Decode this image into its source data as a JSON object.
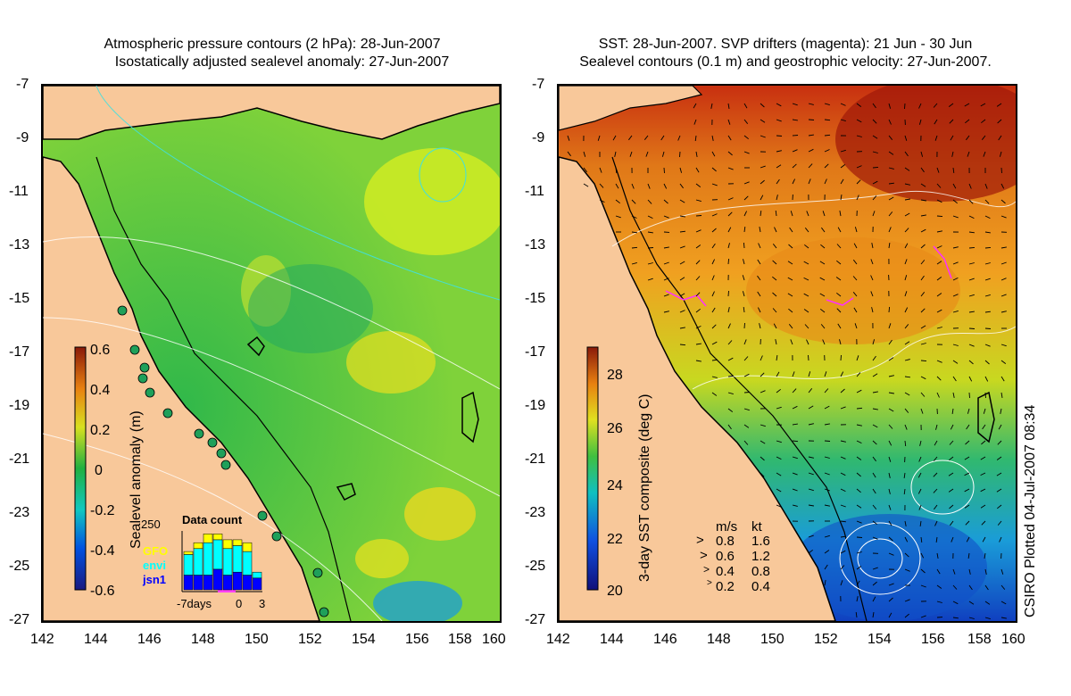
{
  "left_panel": {
    "title_line1": "Atmospheric pressure contours (2 hPa): 28-Jun-2007",
    "title_line2": "Isostatically adjusted sealevel anomaly: 27-Jun-2007",
    "colorbar": {
      "label": "Sealevel anomaly (m)",
      "ticks": [
        "0.6",
        "0.4",
        "0.2",
        "0",
        "-0.2",
        "-0.4",
        "-0.6"
      ]
    },
    "inset": {
      "title": "Data count",
      "ymax": "250",
      "legend": [
        {
          "name": "GFO",
          "color": "#ffff00"
        },
        {
          "name": "envi",
          "color": "#00ffff"
        },
        {
          "name": "jsn1",
          "color": "#0000ff"
        }
      ],
      "x_start": "-7days",
      "x_mid": "0",
      "x_end": "3",
      "bars": [
        {
          "jsn1": 0.25,
          "envi": 0.35,
          "gfo": 0.05
        },
        {
          "jsn1": 0.25,
          "envi": 0.45,
          "gfo": 0.1
        },
        {
          "jsn1": 0.25,
          "envi": 0.55,
          "gfo": 0.15
        },
        {
          "jsn1": 0.35,
          "envi": 0.5,
          "gfo": 0.1
        },
        {
          "jsn1": 0.25,
          "envi": 0.45,
          "gfo": 0.15
        },
        {
          "jsn1": 0.3,
          "envi": 0.45,
          "gfo": 0.1
        },
        {
          "jsn1": 0.25,
          "envi": 0.4,
          "gfo": 0.15
        },
        {
          "jsn1": 0.2,
          "envi": 0.1,
          "gfo": 0.0
        }
      ]
    }
  },
  "right_panel": {
    "title_line1": "SST: 28-Jun-2007. SVP drifters (magenta): 21 Jun - 30 Jun",
    "title_line2": "Sealevel contours (0.1 m) and geostrophic velocity: 27-Jun-2007.",
    "colorbar": {
      "label": "3-day SST composite (deg C)",
      "ticks": [
        "28",
        "26",
        "24",
        "22",
        "20"
      ]
    },
    "velocity_key": {
      "header_ms": "m/s",
      "header_kt": "kt",
      "rows": [
        {
          "ms": "0.8",
          "kt": "1.6"
        },
        {
          "ms": "0.6",
          "kt": "1.2"
        },
        {
          "ms": "0.4",
          "kt": "0.8"
        },
        {
          "ms": "0.2",
          "kt": "0.4"
        }
      ]
    }
  },
  "axes": {
    "lat_ticks": [
      "-7",
      "-9",
      "-11",
      "-13",
      "-15",
      "-17",
      "-19",
      "-21",
      "-23",
      "-25",
      "-27"
    ],
    "lon_ticks": [
      "142",
      "144",
      "146",
      "148",
      "150",
      "152",
      "154",
      "156",
      "158",
      "160"
    ]
  },
  "credit": "CSIRO Plotted 04-Jul-2007 08:34",
  "colors": {
    "land": "#f8c89a",
    "ocean_left": "#7fd23a",
    "ocean_right_warm": "#f0a020",
    "ocean_right_cool": "#1a9cd8"
  }
}
